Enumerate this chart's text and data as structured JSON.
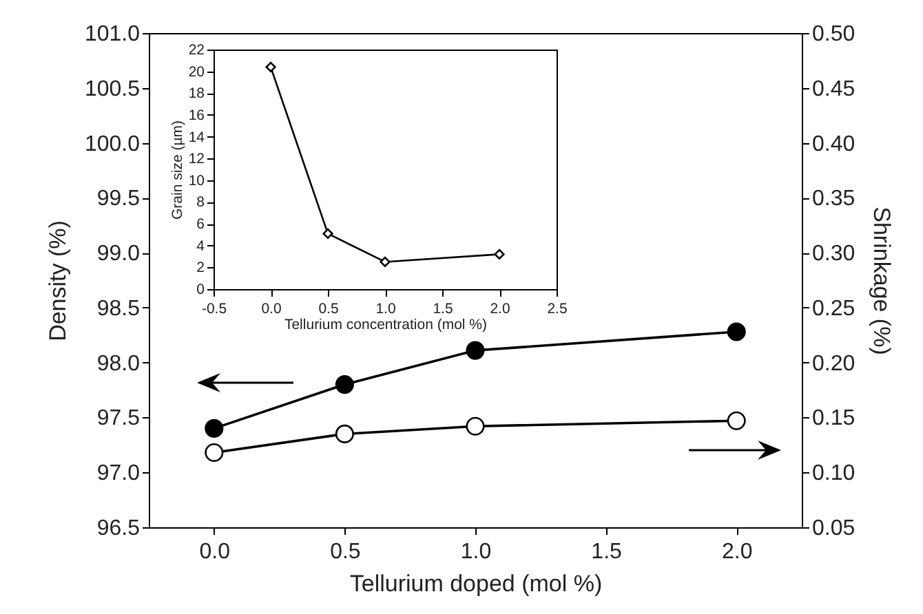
{
  "chart_data": [
    {
      "type": "line",
      "xlabel": "Tellurium doped (mol %)",
      "ylabel": "Density (%)",
      "y2label": "Shrinkage (%)",
      "x": [
        0,
        0.5,
        1,
        2
      ],
      "series": [
        {
          "color": "#000000",
          "values": [
            97.4,
            97.8,
            98.11,
            98.28
          ]
        },
        {
          "color": "#000000",
          "axis": "y2",
          "values": [
            0.118,
            0.135,
            0.142,
            0.147
          ]
        }
      ],
      "xlim": [
        -0.25,
        2.25
      ],
      "xticks": [
        {
          "value": 0,
          "label": "0.0"
        },
        {
          "value": 0.5,
          "label": "0.5"
        },
        {
          "value": 1,
          "label": "1.0"
        },
        {
          "value": 1.5,
          "label": "1.5"
        },
        {
          "value": 2,
          "label": "2.0"
        }
      ],
      "ylim": [
        96.5,
        101
      ],
      "yticks": [
        {
          "value": 96.5,
          "label": "96.5"
        },
        {
          "value": 97,
          "label": "97.0"
        },
        {
          "value": 97.5,
          "label": "97.5"
        },
        {
          "value": 98,
          "label": "98.0"
        },
        {
          "value": 98.5,
          "label": "98.5"
        },
        {
          "value": 99,
          "label": "99.0"
        },
        {
          "value": 99.5,
          "label": "99.5"
        },
        {
          "value": 100,
          "label": "100.0"
        },
        {
          "value": 100.5,
          "label": "100.5"
        },
        {
          "value": 101,
          "label": "101.0"
        }
      ],
      "y2lim": [
        0.05,
        0.5
      ],
      "y2ticks": [
        {
          "value": 0.05,
          "label": "0.05"
        },
        {
          "value": 0.1,
          "label": "0.10"
        },
        {
          "value": 0.15,
          "label": "0.15"
        },
        {
          "value": 0.2,
          "label": "0.20"
        },
        {
          "value": 0.25,
          "label": "0.25"
        },
        {
          "value": 0.3,
          "label": "0.30"
        },
        {
          "value": 0.35,
          "label": "0.35"
        },
        {
          "value": 0.4,
          "label": "0.40"
        },
        {
          "value": 0.45,
          "label": "0.45"
        },
        {
          "value": 0.5,
          "label": "0.50"
        }
      ],
      "grid": false,
      "marker": "circle",
      "line_style": "solid"
    },
    {
      "type": "line",
      "xlabel": "Tellurium concentration (mol %)",
      "ylabel": "Grain size (µm)",
      "x": [
        0,
        0.5,
        1,
        2
      ],
      "values": [
        20.4,
        5.1,
        2.5,
        3.2
      ],
      "color": "#000000",
      "xlim": [
        -0.5,
        2.5
      ],
      "xticks": [
        {
          "value": -0.5,
          "label": "-0.5"
        },
        {
          "value": 0,
          "label": "0.0"
        },
        {
          "value": 0.5,
          "label": "0.5"
        },
        {
          "value": 1,
          "label": "1.0"
        },
        {
          "value": 1.5,
          "label": "1.5"
        },
        {
          "value": 2,
          "label": "2.0"
        },
        {
          "value": 2.5,
          "label": "2.5"
        }
      ],
      "ylim": [
        0,
        22
      ],
      "yticks": [
        0,
        2,
        4,
        6,
        8,
        10,
        12,
        14,
        16,
        18,
        20,
        22
      ],
      "grid": false,
      "marker": "diamond",
      "line_style": "solid"
    }
  ]
}
